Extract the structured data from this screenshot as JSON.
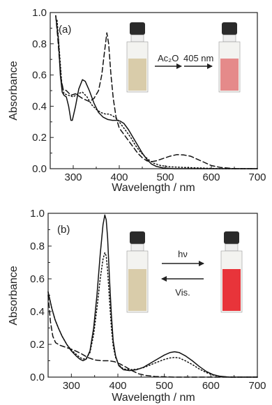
{
  "chart_data": [
    {
      "type": "line",
      "panel_label": "(a)",
      "xlabel": "Wavelength / nm",
      "ylabel": "Absorbance",
      "xlim": [
        250,
        700
      ],
      "ylim": [
        0,
        1.0
      ],
      "x_ticks": [
        300,
        400,
        500,
        600,
        700
      ],
      "x_tick_labels": [
        "300",
        "400",
        "500",
        "600",
        "700"
      ],
      "y_ticks": [
        0.0,
        0.2,
        0.4,
        0.6,
        0.8,
        1.0
      ],
      "y_tick_labels": [
        "0.0",
        "0.2",
        "0.4",
        "0.6",
        "0.8",
        "1.0"
      ],
      "annotations": {
        "left_arrow": "Ac₂O",
        "right_arrow": "405 nm"
      },
      "vial_colors": {
        "left": "#d9ccaa",
        "right": "#e58a8a"
      },
      "series": [
        {
          "style": "solid",
          "points": [
            [
              262,
              0.98
            ],
            [
              268,
              0.82
            ],
            [
              272,
              0.6
            ],
            [
              276,
              0.49
            ],
            [
              280,
              0.47
            ],
            [
              285,
              0.46
            ],
            [
              290,
              0.4
            ],
            [
              295,
              0.31
            ],
            [
              298,
              0.31
            ],
            [
              305,
              0.4
            ],
            [
              312,
              0.51
            ],
            [
              320,
              0.57
            ],
            [
              326,
              0.56
            ],
            [
              335,
              0.5
            ],
            [
              345,
              0.42
            ],
            [
              355,
              0.36
            ],
            [
              365,
              0.33
            ],
            [
              375,
              0.315
            ],
            [
              385,
              0.31
            ],
            [
              395,
              0.31
            ],
            [
              402,
              0.305
            ],
            [
              410,
              0.29
            ],
            [
              420,
              0.25
            ],
            [
              430,
              0.2
            ],
            [
              440,
              0.15
            ],
            [
              450,
              0.1
            ],
            [
              460,
              0.06
            ],
            [
              470,
              0.03
            ],
            [
              480,
              0.015
            ],
            [
              495,
              0.005
            ],
            [
              520,
              0.0
            ],
            [
              700,
              0.0
            ]
          ]
        },
        {
          "style": "dashed",
          "points": [
            [
              262,
              0.98
            ],
            [
              266,
              0.85
            ],
            [
              270,
              0.7
            ],
            [
              274,
              0.57
            ],
            [
              278,
              0.51
            ],
            [
              285,
              0.5
            ],
            [
              295,
              0.47
            ],
            [
              305,
              0.48
            ],
            [
              320,
              0.45
            ],
            [
              335,
              0.43
            ],
            [
              345,
              0.45
            ],
            [
              355,
              0.5
            ],
            [
              362,
              0.6
            ],
            [
              368,
              0.75
            ],
            [
              373,
              0.87
            ],
            [
              377,
              0.8
            ],
            [
              382,
              0.6
            ],
            [
              387,
              0.45
            ],
            [
              393,
              0.33
            ],
            [
              400,
              0.26
            ],
            [
              410,
              0.22
            ],
            [
              420,
              0.18
            ],
            [
              430,
              0.14
            ],
            [
              440,
              0.1
            ],
            [
              450,
              0.07
            ],
            [
              460,
              0.05
            ],
            [
              470,
              0.045
            ],
            [
              480,
              0.05
            ],
            [
              495,
              0.065
            ],
            [
              510,
              0.08
            ],
            [
              525,
              0.09
            ],
            [
              540,
              0.088
            ],
            [
              555,
              0.08
            ],
            [
              570,
              0.06
            ],
            [
              585,
              0.04
            ],
            [
              600,
              0.02
            ],
            [
              620,
              0.008
            ],
            [
              650,
              0.0
            ],
            [
              700,
              0.0
            ]
          ]
        },
        {
          "style": "dotted",
          "points": [
            [
              265,
              0.95
            ],
            [
              270,
              0.75
            ],
            [
              275,
              0.55
            ],
            [
              280,
              0.48
            ],
            [
              290,
              0.47
            ],
            [
              300,
              0.46
            ],
            [
              310,
              0.48
            ],
            [
              320,
              0.49
            ],
            [
              330,
              0.46
            ],
            [
              340,
              0.41
            ],
            [
              350,
              0.38
            ],
            [
              360,
              0.36
            ],
            [
              370,
              0.35
            ],
            [
              378,
              0.35
            ],
            [
              385,
              0.34
            ],
            [
              395,
              0.32
            ],
            [
              405,
              0.28
            ],
            [
              415,
              0.24
            ],
            [
              425,
              0.2
            ],
            [
              435,
              0.15
            ],
            [
              445,
              0.11
            ],
            [
              455,
              0.08
            ],
            [
              465,
              0.055
            ],
            [
              475,
              0.035
            ],
            [
              490,
              0.02
            ],
            [
              510,
              0.012
            ],
            [
              540,
              0.008
            ],
            [
              580,
              0.004
            ],
            [
              620,
              0.0
            ],
            [
              700,
              0.0
            ]
          ]
        }
      ]
    },
    {
      "type": "line",
      "panel_label": "(b)",
      "xlabel": "Wavelength / nm",
      "ylabel": "Absorbance",
      "xlim": [
        250,
        700
      ],
      "ylim": [
        0,
        1.0
      ],
      "x_ticks": [
        300,
        400,
        500,
        600,
        700
      ],
      "x_tick_labels": [
        "300",
        "400",
        "500",
        "600",
        "700"
      ],
      "y_ticks": [
        0.0,
        0.2,
        0.4,
        0.6,
        0.8,
        1.0
      ],
      "y_tick_labels": [
        "0.0",
        "0.2",
        "0.4",
        "0.6",
        "0.8",
        "1.0"
      ],
      "annotations": {
        "forward": "hν",
        "backward": "Vis."
      },
      "vial_colors": {
        "left": "#d9ccaa",
        "right": "#e8343a"
      },
      "series": [
        {
          "style": "solid",
          "points": [
            [
              250,
              0.52
            ],
            [
              258,
              0.42
            ],
            [
              265,
              0.35
            ],
            [
              272,
              0.3
            ],
            [
              280,
              0.25
            ],
            [
              290,
              0.2
            ],
            [
              300,
              0.16
            ],
            [
              310,
              0.13
            ],
            [
              318,
              0.11
            ],
            [
              325,
              0.1
            ],
            [
              332,
              0.11
            ],
            [
              340,
              0.16
            ],
            [
              348,
              0.3
            ],
            [
              355,
              0.5
            ],
            [
              362,
              0.75
            ],
            [
              368,
              0.93
            ],
            [
              372,
              0.99
            ],
            [
              375,
              0.96
            ],
            [
              378,
              0.85
            ],
            [
              382,
              0.6
            ],
            [
              386,
              0.38
            ],
            [
              390,
              0.22
            ],
            [
              395,
              0.13
            ],
            [
              402,
              0.07
            ],
            [
              412,
              0.045
            ],
            [
              425,
              0.04
            ],
            [
              440,
              0.045
            ],
            [
              455,
              0.06
            ],
            [
              470,
              0.085
            ],
            [
              485,
              0.11
            ],
            [
              500,
              0.135
            ],
            [
              512,
              0.15
            ],
            [
              522,
              0.155
            ],
            [
              532,
              0.15
            ],
            [
              545,
              0.13
            ],
            [
              560,
              0.1
            ],
            [
              575,
              0.065
            ],
            [
              590,
              0.035
            ],
            [
              605,
              0.015
            ],
            [
              620,
              0.005
            ],
            [
              640,
              0.0
            ],
            [
              700,
              0.0
            ]
          ]
        },
        {
          "style": "dashed",
          "points": [
            [
              250,
              0.5
            ],
            [
              255,
              0.34
            ],
            [
              260,
              0.25
            ],
            [
              266,
              0.21
            ],
            [
              275,
              0.195
            ],
            [
              290,
              0.18
            ],
            [
              305,
              0.165
            ],
            [
              320,
              0.145
            ],
            [
              335,
              0.12
            ],
            [
              350,
              0.105
            ],
            [
              365,
              0.1
            ],
            [
              380,
              0.1
            ],
            [
              392,
              0.095
            ],
            [
              405,
              0.08
            ],
            [
              418,
              0.06
            ],
            [
              430,
              0.04
            ],
            [
              445,
              0.02
            ],
            [
              460,
              0.01
            ],
            [
              480,
              0.004
            ],
            [
              520,
              0.0
            ],
            [
              700,
              0.0
            ]
          ]
        },
        {
          "style": "dotted",
          "points": [
            [
              250,
              0.52
            ],
            [
              258,
              0.42
            ],
            [
              265,
              0.35
            ],
            [
              272,
              0.3
            ],
            [
              280,
              0.25
            ],
            [
              290,
              0.2
            ],
            [
              300,
              0.165
            ],
            [
              310,
              0.14
            ],
            [
              318,
              0.12
            ],
            [
              325,
              0.11
            ],
            [
              332,
              0.115
            ],
            [
              340,
              0.15
            ],
            [
              348,
              0.26
            ],
            [
              355,
              0.42
            ],
            [
              362,
              0.6
            ],
            [
              368,
              0.72
            ],
            [
              372,
              0.76
            ],
            [
              375,
              0.74
            ],
            [
              378,
              0.65
            ],
            [
              382,
              0.47
            ],
            [
              386,
              0.3
            ],
            [
              390,
              0.19
            ],
            [
              395,
              0.12
            ],
            [
              402,
              0.075
            ],
            [
              412,
              0.05
            ],
            [
              425,
              0.045
            ],
            [
              440,
              0.048
            ],
            [
              455,
              0.058
            ],
            [
              470,
              0.075
            ],
            [
              485,
              0.092
            ],
            [
              500,
              0.108
            ],
            [
              512,
              0.117
            ],
            [
              522,
              0.12
            ],
            [
              532,
              0.117
            ],
            [
              545,
              0.1
            ],
            [
              560,
              0.077
            ],
            [
              575,
              0.05
            ],
            [
              590,
              0.028
            ],
            [
              605,
              0.012
            ],
            [
              620,
              0.004
            ],
            [
              640,
              0.0
            ],
            [
              700,
              0.0
            ]
          ]
        }
      ]
    }
  ]
}
